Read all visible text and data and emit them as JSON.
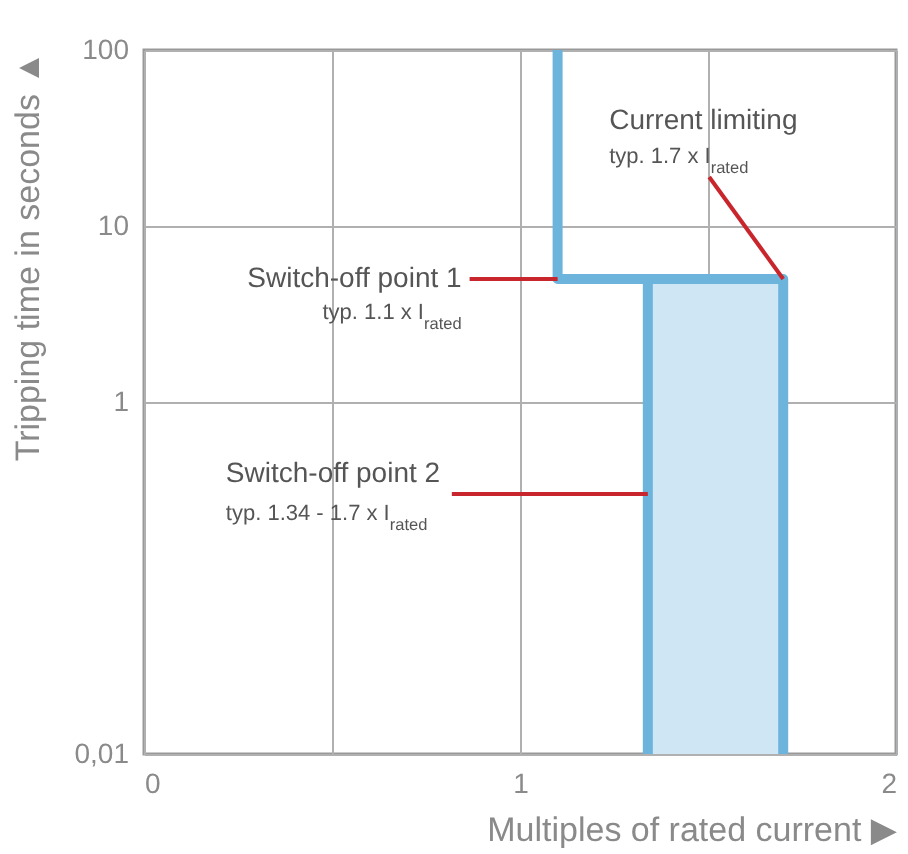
{
  "chart_data": {
    "type": "line",
    "xlabel": "Multiples of rated current ▶",
    "ylabel": "Tripping time in seconds ▲",
    "xlim": [
      0,
      2
    ],
    "xticks": [
      0,
      {
        "value": 0.5,
        "label": null
      },
      1,
      {
        "value": 1.5,
        "label": null
      },
      2
    ],
    "ylim": [
      0.01,
      100
    ],
    "yticks": [
      {
        "value": 0.01,
        "label": "0,01"
      },
      1,
      10,
      100
    ],
    "log": "y",
    "grid": true,
    "series": [
      {
        "type": "area",
        "color": "#cfe7f5",
        "x": [
          1.34,
          1.7
        ],
        "values": [
          5,
          5
        ]
      },
      {
        "color": "#6cb4dc",
        "x": [
          1.34,
          1.34
        ],
        "values": [
          0.01,
          5
        ]
      },
      {
        "color": "#6cb4dc",
        "x": [
          1.1,
          1.1,
          1.7,
          1.7
        ],
        "values": [
          100,
          5,
          5,
          0.01
        ]
      }
    ],
    "annotations": [
      {
        "text": "Switch-off point 1\ntyp. 1.1 x I$_{rated}$",
        "x": 1.1,
        "y": 5
      },
      {
        "text": "Current limiting\ntyp. 1.7 x I$_{rated}$",
        "x": 1.7,
        "y": 5
      },
      {
        "text": "Switch-off point 2\ntyp. 1.34 - 1.7 x I$_{rated}$",
        "x": 1.34,
        "y": 0.3
      }
    ]
  }
}
